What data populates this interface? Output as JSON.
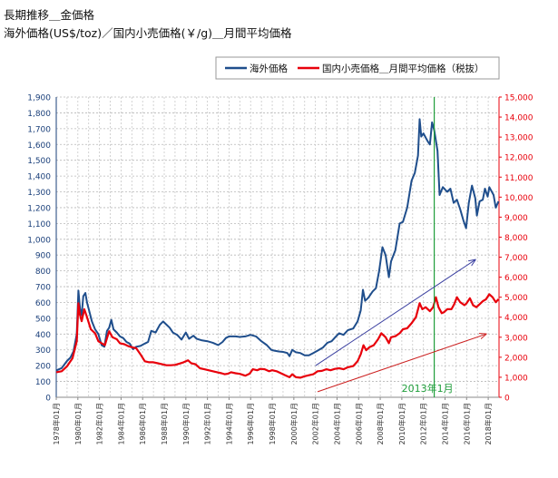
{
  "title_line1": "長期推移＿金価格",
  "title_line2": "海外価格(US$/toz)／国内小売価格(￥/g)＿月間平均価格",
  "chart_data": {
    "type": "line",
    "x_tick_labels": [
      "1978年01月",
      "1980年01月",
      "1982年01月",
      "1984年01月",
      "1986年01月",
      "1988年01月",
      "1990年01月",
      "1992年01月",
      "1994年01月",
      "1996年01月",
      "1998年01月",
      "2000年01月",
      "2002年01月",
      "2004年01月",
      "2006年01月",
      "2008年01月",
      "2010年01月",
      "2012年01月",
      "2014年01月",
      "2016年01月",
      "2018年01月"
    ],
    "xlim": [
      1978.0,
      2019.0
    ],
    "y_left": {
      "min": 0,
      "max": 1900,
      "step": 100,
      "tick_labels": [
        "0",
        "100",
        "200",
        "300",
        "400",
        "500",
        "600",
        "700",
        "800",
        "900",
        "1,000",
        "1,100",
        "1,200",
        "1,300",
        "1,400",
        "1,500",
        "1,600",
        "1,700",
        "1,800",
        "1,900"
      ]
    },
    "y_right": {
      "min": 0,
      "max": 15000,
      "step": 1000,
      "tick_labels": [
        "0",
        "1,000",
        "2,000",
        "3,000",
        "4,000",
        "5,000",
        "6,000",
        "7,000",
        "8,000",
        "9,000",
        "10,000",
        "11,000",
        "12,000",
        "13,000",
        "14,000",
        "15,000"
      ]
    },
    "grid": true,
    "legend_position": "top-right",
    "series": [
      {
        "name": "海外価格",
        "color": "#1f4e8c",
        "axis": "left",
        "points": [
          [
            1978.0,
            170
          ],
          [
            1978.5,
            185
          ],
          [
            1979.0,
            230
          ],
          [
            1979.3,
            250
          ],
          [
            1979.6,
            290
          ],
          [
            1979.9,
            400
          ],
          [
            1980.05,
            675
          ],
          [
            1980.2,
            560
          ],
          [
            1980.35,
            520
          ],
          [
            1980.5,
            640
          ],
          [
            1980.7,
            660
          ],
          [
            1980.85,
            600
          ],
          [
            1981.0,
            560
          ],
          [
            1981.3,
            480
          ],
          [
            1981.6,
            430
          ],
          [
            1981.9,
            400
          ],
          [
            1982.2,
            330
          ],
          [
            1982.45,
            320
          ],
          [
            1982.7,
            420
          ],
          [
            1982.9,
            440
          ],
          [
            1983.1,
            490
          ],
          [
            1983.3,
            430
          ],
          [
            1983.6,
            410
          ],
          [
            1983.9,
            385
          ],
          [
            1984.2,
            375
          ],
          [
            1984.5,
            350
          ],
          [
            1984.8,
            340
          ],
          [
            1985.1,
            305
          ],
          [
            1985.4,
            320
          ],
          [
            1985.8,
            325
          ],
          [
            1986.2,
            340
          ],
          [
            1986.5,
            350
          ],
          [
            1986.8,
            420
          ],
          [
            1987.2,
            410
          ],
          [
            1987.6,
            460
          ],
          [
            1987.9,
            480
          ],
          [
            1988.2,
            460
          ],
          [
            1988.5,
            440
          ],
          [
            1988.8,
            410
          ],
          [
            1989.2,
            395
          ],
          [
            1989.6,
            365
          ],
          [
            1990.0,
            410
          ],
          [
            1990.3,
            370
          ],
          [
            1990.7,
            390
          ],
          [
            1991.0,
            370
          ],
          [
            1991.5,
            360
          ],
          [
            1992.0,
            355
          ],
          [
            1992.5,
            345
          ],
          [
            1993.0,
            330
          ],
          [
            1993.4,
            350
          ],
          [
            1993.7,
            375
          ],
          [
            1994.0,
            385
          ],
          [
            1994.6,
            385
          ],
          [
            1995.0,
            382
          ],
          [
            1995.5,
            385
          ],
          [
            1996.0,
            395
          ],
          [
            1996.5,
            385
          ],
          [
            1997.0,
            355
          ],
          [
            1997.5,
            330
          ],
          [
            1997.9,
            300
          ],
          [
            1998.2,
            295
          ],
          [
            1998.6,
            290
          ],
          [
            1999.0,
            287
          ],
          [
            1999.4,
            280
          ],
          [
            1999.6,
            260
          ],
          [
            1999.85,
            300
          ],
          [
            2000.2,
            285
          ],
          [
            2000.6,
            280
          ],
          [
            2001.0,
            265
          ],
          [
            2001.4,
            265
          ],
          [
            2001.8,
            280
          ],
          [
            2002.2,
            295
          ],
          [
            2002.7,
            315
          ],
          [
            2003.1,
            345
          ],
          [
            2003.5,
            355
          ],
          [
            2003.9,
            385
          ],
          [
            2004.2,
            405
          ],
          [
            2004.6,
            395
          ],
          [
            2005.0,
            425
          ],
          [
            2005.5,
            435
          ],
          [
            2005.9,
            480
          ],
          [
            2006.2,
            550
          ],
          [
            2006.4,
            680
          ],
          [
            2006.6,
            610
          ],
          [
            2006.9,
            630
          ],
          [
            2007.3,
            670
          ],
          [
            2007.6,
            690
          ],
          [
            2007.9,
            800
          ],
          [
            2008.2,
            950
          ],
          [
            2008.5,
            900
          ],
          [
            2008.8,
            760
          ],
          [
            2009.0,
            860
          ],
          [
            2009.4,
            930
          ],
          [
            2009.8,
            1100
          ],
          [
            2010.1,
            1110
          ],
          [
            2010.5,
            1200
          ],
          [
            2010.9,
            1370
          ],
          [
            2011.2,
            1420
          ],
          [
            2011.5,
            1530
          ],
          [
            2011.65,
            1760
          ],
          [
            2011.8,
            1650
          ],
          [
            2012.0,
            1670
          ],
          [
            2012.4,
            1620
          ],
          [
            2012.6,
            1600
          ],
          [
            2012.8,
            1740
          ],
          [
            2013.0,
            1690
          ],
          [
            2013.3,
            1560
          ],
          [
            2013.5,
            1280
          ],
          [
            2013.8,
            1330
          ],
          [
            2014.2,
            1300
          ],
          [
            2014.5,
            1320
          ],
          [
            2014.8,
            1230
          ],
          [
            2015.1,
            1250
          ],
          [
            2015.4,
            1190
          ],
          [
            2015.7,
            1120
          ],
          [
            2015.95,
            1070
          ],
          [
            2016.2,
            1230
          ],
          [
            2016.5,
            1340
          ],
          [
            2016.8,
            1260
          ],
          [
            2016.95,
            1150
          ],
          [
            2017.2,
            1240
          ],
          [
            2017.5,
            1250
          ],
          [
            2017.7,
            1320
          ],
          [
            2017.95,
            1270
          ],
          [
            2018.1,
            1330
          ],
          [
            2018.5,
            1280
          ],
          [
            2018.7,
            1200
          ],
          [
            2018.95,
            1240
          ]
        ]
      },
      {
        "name": "国内小売価格＿月間平均価格（税抜）",
        "color": "#e8000b",
        "axis": "right",
        "points": [
          [
            1978.0,
            1250
          ],
          [
            1978.5,
            1300
          ],
          [
            1979.0,
            1550
          ],
          [
            1979.5,
            1950
          ],
          [
            1979.9,
            2800
          ],
          [
            1980.05,
            4700
          ],
          [
            1980.2,
            4100
          ],
          [
            1980.35,
            3800
          ],
          [
            1980.6,
            4400
          ],
          [
            1980.85,
            4000
          ],
          [
            1981.2,
            3400
          ],
          [
            1981.6,
            3200
          ],
          [
            1981.9,
            2800
          ],
          [
            1982.2,
            2700
          ],
          [
            1982.5,
            2600
          ],
          [
            1982.7,
            2950
          ],
          [
            1982.9,
            3300
          ],
          [
            1983.2,
            3000
          ],
          [
            1983.6,
            2900
          ],
          [
            1983.9,
            2700
          ],
          [
            1984.3,
            2650
          ],
          [
            1984.7,
            2550
          ],
          [
            1985.0,
            2500
          ],
          [
            1985.4,
            2450
          ],
          [
            1985.8,
            2150
          ],
          [
            1986.2,
            1800
          ],
          [
            1986.6,
            1750
          ],
          [
            1987.0,
            1750
          ],
          [
            1987.4,
            1700
          ],
          [
            1987.8,
            1650
          ],
          [
            1988.2,
            1600
          ],
          [
            1988.6,
            1600
          ],
          [
            1989.0,
            1620
          ],
          [
            1989.4,
            1680
          ],
          [
            1989.8,
            1750
          ],
          [
            1990.2,
            1850
          ],
          [
            1990.5,
            1700
          ],
          [
            1990.9,
            1650
          ],
          [
            1991.3,
            1450
          ],
          [
            1991.7,
            1400
          ],
          [
            1992.1,
            1350
          ],
          [
            1992.5,
            1300
          ],
          [
            1992.9,
            1250
          ],
          [
            1993.3,
            1200
          ],
          [
            1993.6,
            1150
          ],
          [
            1993.9,
            1180
          ],
          [
            1994.2,
            1250
          ],
          [
            1994.6,
            1200
          ],
          [
            1995.0,
            1170
          ],
          [
            1995.5,
            1080
          ],
          [
            1995.9,
            1180
          ],
          [
            1996.2,
            1400
          ],
          [
            1996.6,
            1350
          ],
          [
            1996.9,
            1420
          ],
          [
            1997.3,
            1400
          ],
          [
            1997.7,
            1300
          ],
          [
            1998.0,
            1350
          ],
          [
            1998.4,
            1300
          ],
          [
            1998.8,
            1200
          ],
          [
            1999.2,
            1100
          ],
          [
            1999.6,
            1000
          ],
          [
            1999.85,
            1150
          ],
          [
            2000.2,
            1000
          ],
          [
            2000.6,
            980
          ],
          [
            2001.0,
            1050
          ],
          [
            2001.4,
            1100
          ],
          [
            2001.8,
            1150
          ],
          [
            2002.2,
            1300
          ],
          [
            2002.6,
            1320
          ],
          [
            2003.0,
            1400
          ],
          [
            2003.4,
            1350
          ],
          [
            2003.8,
            1420
          ],
          [
            2004.2,
            1450
          ],
          [
            2004.6,
            1400
          ],
          [
            2005.0,
            1500
          ],
          [
            2005.5,
            1560
          ],
          [
            2005.9,
            1800
          ],
          [
            2006.2,
            2150
          ],
          [
            2006.45,
            2600
          ],
          [
            2006.7,
            2350
          ],
          [
            2007.0,
            2500
          ],
          [
            2007.4,
            2600
          ],
          [
            2007.8,
            2900
          ],
          [
            2008.1,
            3200
          ],
          [
            2008.5,
            3000
          ],
          [
            2008.8,
            2700
          ],
          [
            2009.0,
            3000
          ],
          [
            2009.4,
            3050
          ],
          [
            2009.8,
            3200
          ],
          [
            2010.1,
            3400
          ],
          [
            2010.5,
            3450
          ],
          [
            2010.9,
            3700
          ],
          [
            2011.3,
            4000
          ],
          [
            2011.65,
            4700
          ],
          [
            2011.9,
            4400
          ],
          [
            2012.2,
            4500
          ],
          [
            2012.6,
            4300
          ],
          [
            2012.9,
            4500
          ],
          [
            2013.15,
            5000
          ],
          [
            2013.4,
            4500
          ],
          [
            2013.7,
            4200
          ],
          [
            2013.9,
            4250
          ],
          [
            2014.2,
            4400
          ],
          [
            2014.6,
            4400
          ],
          [
            2014.85,
            4650
          ],
          [
            2015.1,
            5000
          ],
          [
            2015.4,
            4750
          ],
          [
            2015.8,
            4600
          ],
          [
            2016.0,
            4700
          ],
          [
            2016.3,
            4950
          ],
          [
            2016.6,
            4600
          ],
          [
            2016.9,
            4500
          ],
          [
            2017.2,
            4650
          ],
          [
            2017.5,
            4800
          ],
          [
            2017.8,
            4900
          ],
          [
            2018.1,
            5150
          ],
          [
            2018.4,
            5000
          ],
          [
            2018.7,
            4750
          ],
          [
            2018.95,
            4900
          ]
        ]
      }
    ],
    "annotations": [
      {
        "kind": "vline",
        "x": 2013.0,
        "color": "#1f9e3b",
        "label": "2013年1月"
      },
      {
        "kind": "arrow",
        "color": "#3a3fa0",
        "axis": "left",
        "from": [
          2002.0,
          200
        ],
        "to": [
          2016.8,
          870
        ]
      },
      {
        "kind": "arrow",
        "color": "#cc2020",
        "axis": "left",
        "from": [
          2002.2,
          35
        ],
        "to": [
          2017.8,
          400
        ]
      }
    ]
  }
}
